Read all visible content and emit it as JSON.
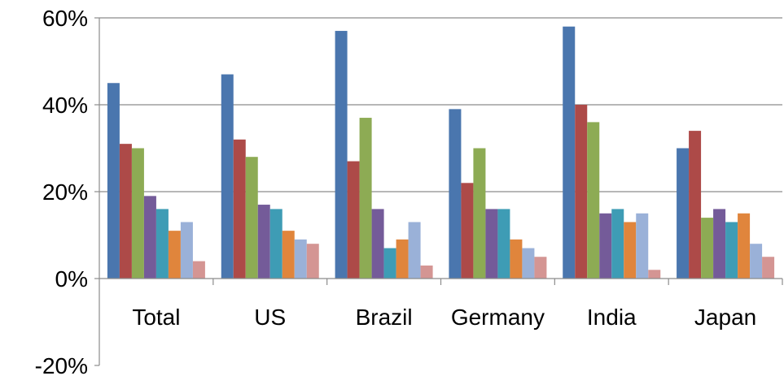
{
  "chart_data": {
    "type": "bar",
    "categories": [
      "Total",
      "US",
      "Brazil",
      "Germany",
      "India",
      "Japan"
    ],
    "series": [
      {
        "values": [
          45,
          47,
          57,
          39,
          58,
          30
        ],
        "color": "#4A76AE"
      },
      {
        "values": [
          31,
          32,
          27,
          22,
          40,
          34
        ],
        "color": "#AD4A48"
      },
      {
        "values": [
          30,
          28,
          37,
          30,
          36,
          14
        ],
        "color": "#8DAB54"
      },
      {
        "values": [
          19,
          17,
          16,
          16,
          15,
          16
        ],
        "color": "#745B99"
      },
      {
        "values": [
          16,
          16,
          7,
          16,
          16,
          13
        ],
        "color": "#3E9CB5"
      },
      {
        "values": [
          11,
          11,
          9,
          9,
          13,
          15
        ],
        "color": "#E0853C"
      },
      {
        "values": [
          13,
          9,
          13,
          7,
          15,
          8
        ],
        "color": "#9AB1D8"
      },
      {
        "values": [
          4,
          8,
          3,
          5,
          2,
          5
        ],
        "color": "#D49593"
      }
    ],
    "y_ticks": [
      "-20%",
      "0%",
      "20%",
      "40%",
      "60%"
    ],
    "y_tick_values": [
      -20,
      0,
      20,
      40,
      60
    ],
    "ylim": [
      -20,
      60
    ],
    "value_unit": "%",
    "grid": true,
    "legend": "none"
  }
}
